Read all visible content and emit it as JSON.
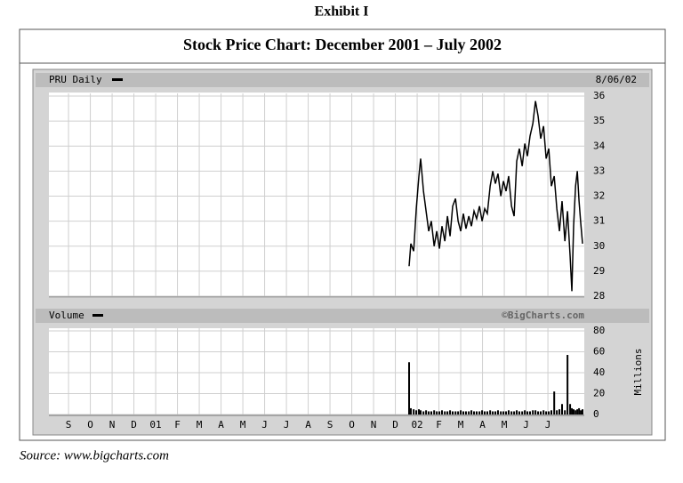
{
  "exhibit": "Exhibit I",
  "title": "Stock Price Chart: December 2001 – July 2002",
  "source": "Source: www.bigcharts.com",
  "chart_data": [
    {
      "type": "line",
      "title": "PRU Daily",
      "date": "8/06/02",
      "color": "#000000",
      "grid": true,
      "x": [
        15.63,
        15.71,
        15.84,
        15.96,
        16.08,
        16.16,
        16.29,
        16.41,
        16.53,
        16.65,
        16.78,
        16.9,
        17.02,
        17.14,
        17.27,
        17.39,
        17.51,
        17.63,
        17.76,
        17.88,
        18.0,
        18.12,
        18.24,
        18.37,
        18.49,
        18.61,
        18.73,
        18.86,
        18.98,
        19.1,
        19.22,
        19.35,
        19.47,
        19.59,
        19.71,
        19.84,
        19.96,
        20.08,
        20.2,
        20.33,
        20.45,
        20.57,
        20.69,
        20.82,
        20.94,
        21.06,
        21.18,
        21.31,
        21.43,
        21.55,
        21.67,
        21.8,
        21.92,
        22.04,
        22.16,
        22.29,
        22.41,
        22.53,
        22.65,
        22.78,
        22.9,
        23.02,
        23.1,
        23.18,
        23.27,
        23.35,
        23.43,
        23.51,
        23.59
      ],
      "values": [
        29.2,
        30.1,
        29.8,
        31.5,
        32.8,
        33.5,
        32.2,
        31.4,
        30.6,
        31.0,
        30.0,
        30.6,
        29.9,
        30.8,
        30.2,
        31.2,
        30.4,
        31.6,
        31.9,
        31.0,
        30.6,
        31.3,
        30.7,
        31.2,
        30.8,
        31.4,
        31.1,
        31.6,
        31.0,
        31.5,
        31.3,
        32.4,
        33.0,
        32.5,
        32.9,
        32.0,
        32.6,
        32.2,
        32.8,
        31.6,
        31.2,
        33.4,
        33.9,
        33.2,
        34.1,
        33.6,
        34.4,
        34.9,
        35.8,
        35.2,
        34.3,
        34.8,
        33.5,
        33.9,
        32.4,
        32.8,
        31.5,
        30.6,
        31.8,
        30.2,
        31.4,
        29.6,
        28.2,
        30.8,
        32.4,
        33.0,
        31.8,
        30.9,
        30.1
      ],
      "xlim": [
        -0.9,
        23.67
      ],
      "xticks": [
        0,
        1,
        2,
        3,
        4,
        5,
        6,
        7,
        8,
        9,
        10,
        11,
        12,
        13,
        14,
        15,
        16,
        17,
        18,
        19,
        20,
        21,
        22
      ],
      "ylim": [
        28,
        36
      ],
      "yticks": [
        28,
        29,
        30,
        31,
        32,
        33,
        34,
        35,
        36
      ]
    },
    {
      "type": "bar",
      "title": "Volume",
      "credit": "©BigCharts.com",
      "ylabel": "Millions",
      "color": "#000000",
      "grid": true,
      "x": [
        15.63,
        15.71,
        15.84,
        15.96,
        16.08,
        16.16,
        16.29,
        16.41,
        16.53,
        16.65,
        16.78,
        16.9,
        17.02,
        17.14,
        17.27,
        17.39,
        17.51,
        17.63,
        17.76,
        17.88,
        18.0,
        18.12,
        18.24,
        18.37,
        18.49,
        18.61,
        18.73,
        18.86,
        18.98,
        19.1,
        19.22,
        19.35,
        19.47,
        19.59,
        19.71,
        19.84,
        19.96,
        20.08,
        20.2,
        20.33,
        20.45,
        20.57,
        20.69,
        20.82,
        20.94,
        21.06,
        21.18,
        21.31,
        21.43,
        21.55,
        21.67,
        21.8,
        21.92,
        22.04,
        22.16,
        22.29,
        22.41,
        22.53,
        22.65,
        22.78,
        22.9,
        23.02,
        23.1,
        23.18,
        23.27,
        23.35,
        23.43,
        23.51,
        23.59
      ],
      "values": [
        50,
        6,
        5,
        4,
        5,
        4,
        3,
        4,
        3,
        3,
        4,
        3,
        3,
        4,
        3,
        3,
        4,
        3,
        3,
        3,
        4,
        3,
        3,
        3,
        4,
        3,
        3,
        3,
        4,
        3,
        3,
        4,
        3,
        3,
        4,
        3,
        3,
        3,
        4,
        3,
        3,
        4,
        3,
        3,
        4,
        3,
        3,
        4,
        4,
        3,
        3,
        4,
        3,
        3,
        4,
        22,
        4,
        5,
        10,
        4,
        57,
        10,
        6,
        5,
        4,
        5,
        6,
        4,
        5
      ],
      "xlim": [
        -0.9,
        23.67
      ],
      "xticks": [
        {
          "value": 0,
          "label": "S"
        },
        {
          "value": 1,
          "label": "O"
        },
        {
          "value": 2,
          "label": "N"
        },
        {
          "value": 3,
          "label": "D"
        },
        {
          "value": 4,
          "label": "01"
        },
        {
          "value": 5,
          "label": "F"
        },
        {
          "value": 6,
          "label": "M"
        },
        {
          "value": 7,
          "label": "A"
        },
        {
          "value": 8,
          "label": "M"
        },
        {
          "value": 9,
          "label": "J"
        },
        {
          "value": 10,
          "label": "J"
        },
        {
          "value": 11,
          "label": "A"
        },
        {
          "value": 12,
          "label": "S"
        },
        {
          "value": 13,
          "label": "O"
        },
        {
          "value": 14,
          "label": "N"
        },
        {
          "value": 15,
          "label": "D"
        },
        {
          "value": 16,
          "label": "02"
        },
        {
          "value": 17,
          "label": "F"
        },
        {
          "value": 18,
          "label": "M"
        },
        {
          "value": 19,
          "label": "A"
        },
        {
          "value": 20,
          "label": "M"
        },
        {
          "value": 21,
          "label": "J"
        },
        {
          "value": 22,
          "label": "J"
        }
      ],
      "ylim": [
        0,
        80
      ],
      "yticks": [
        0,
        20,
        40,
        60,
        80
      ]
    }
  ]
}
